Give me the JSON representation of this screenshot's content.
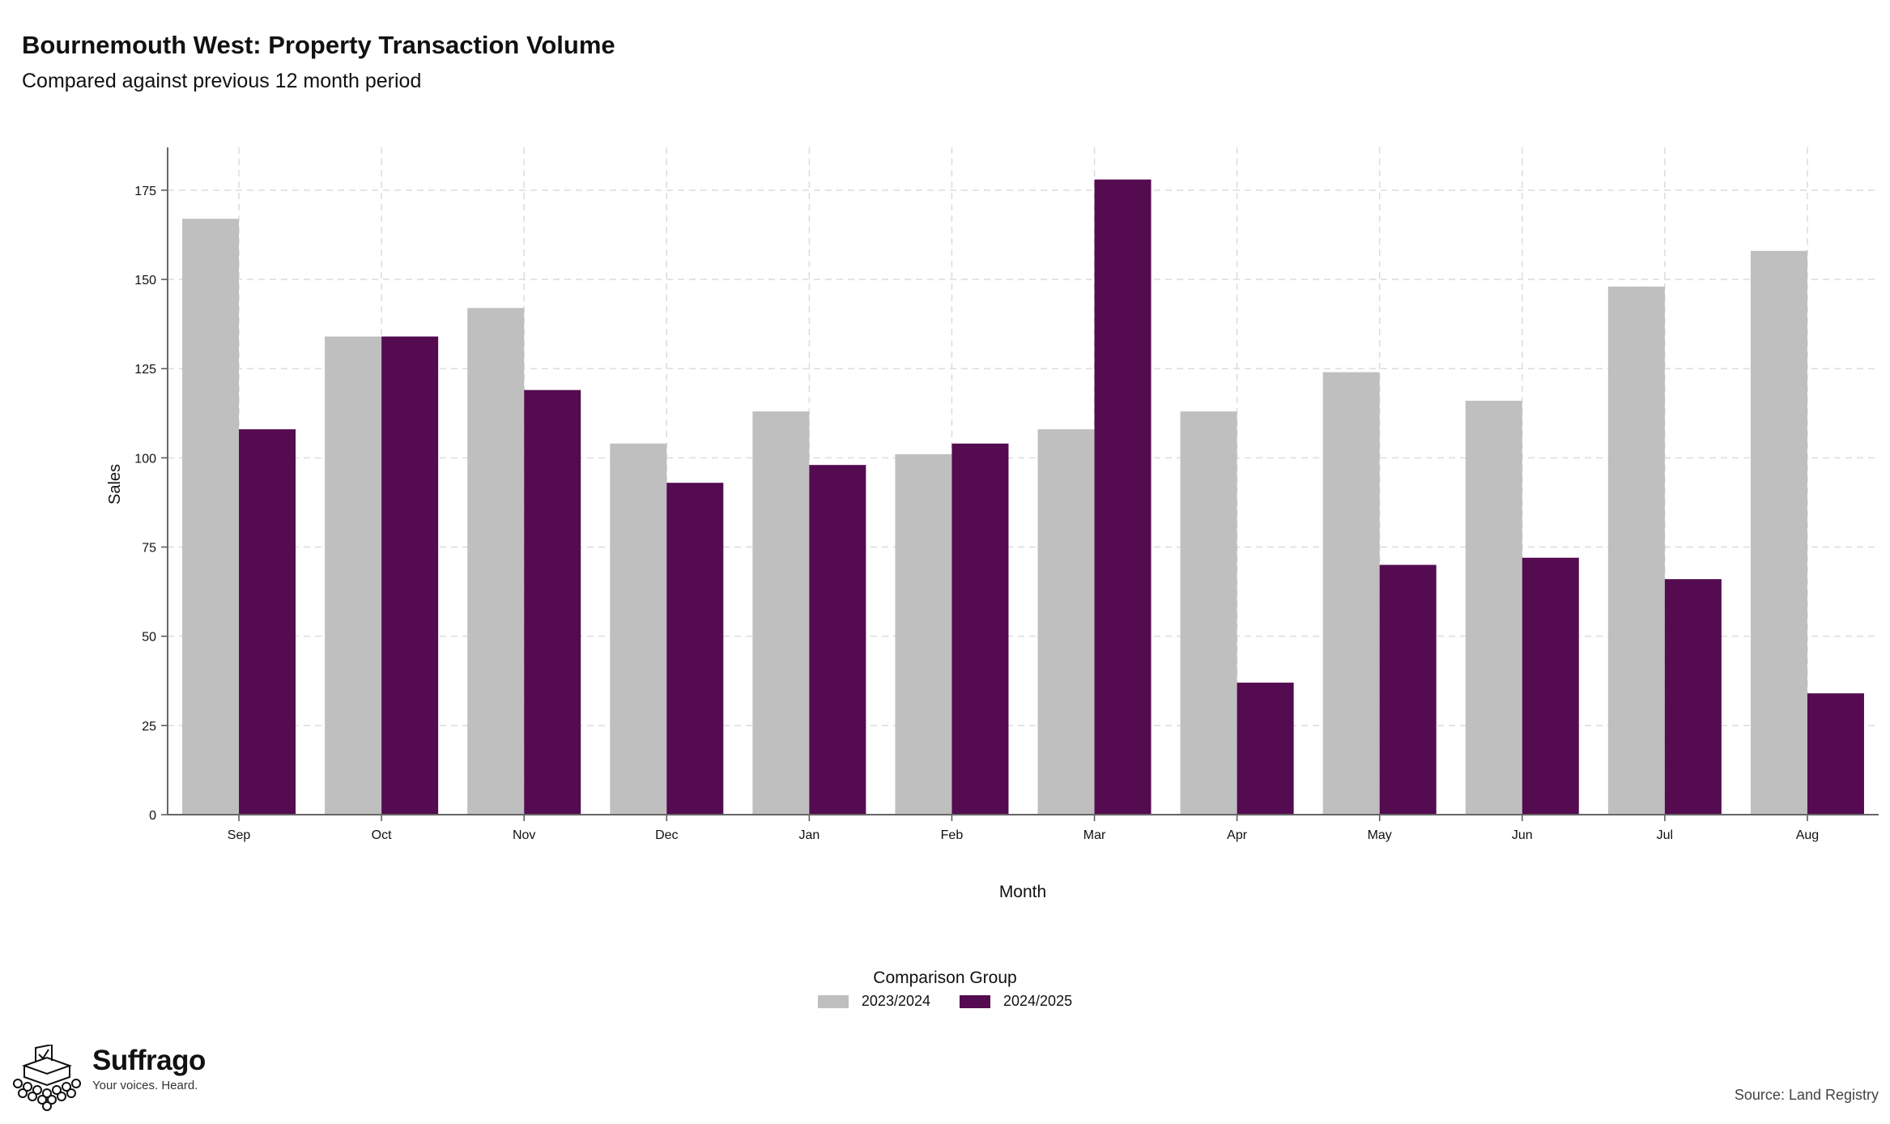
{
  "chart_data": {
    "type": "bar",
    "title": "Bournemouth West: Property Transaction Volume",
    "subtitle": "Compared against previous 12 month period",
    "xlabel": "Month",
    "ylabel": "Sales",
    "categories": [
      "Sep",
      "Oct",
      "Nov",
      "Dec",
      "Jan",
      "Feb",
      "Mar",
      "Apr",
      "May",
      "Jun",
      "Jul",
      "Aug"
    ],
    "series": [
      {
        "name": "2023/2024",
        "color": "#bfbfbf",
        "values": [
          167,
          134,
          142,
          104,
          113,
          101,
          108,
          113,
          124,
          116,
          148,
          158
        ]
      },
      {
        "name": "2024/2025",
        "color": "#540b50",
        "values": [
          108,
          134,
          119,
          93,
          98,
          104,
          178,
          37,
          70,
          72,
          66,
          34
        ]
      }
    ],
    "ylim": [
      0,
      187
    ],
    "yticks": [
      0,
      25,
      50,
      75,
      100,
      125,
      150,
      175
    ],
    "grid": true,
    "legend_title": "Comparison Group",
    "legend_position": "bottom"
  },
  "branding": {
    "name": "Suffrago",
    "tagline": "Your voices. Heard.",
    "icon": "ballot-box-icon"
  },
  "source": "Source: Land Registry"
}
